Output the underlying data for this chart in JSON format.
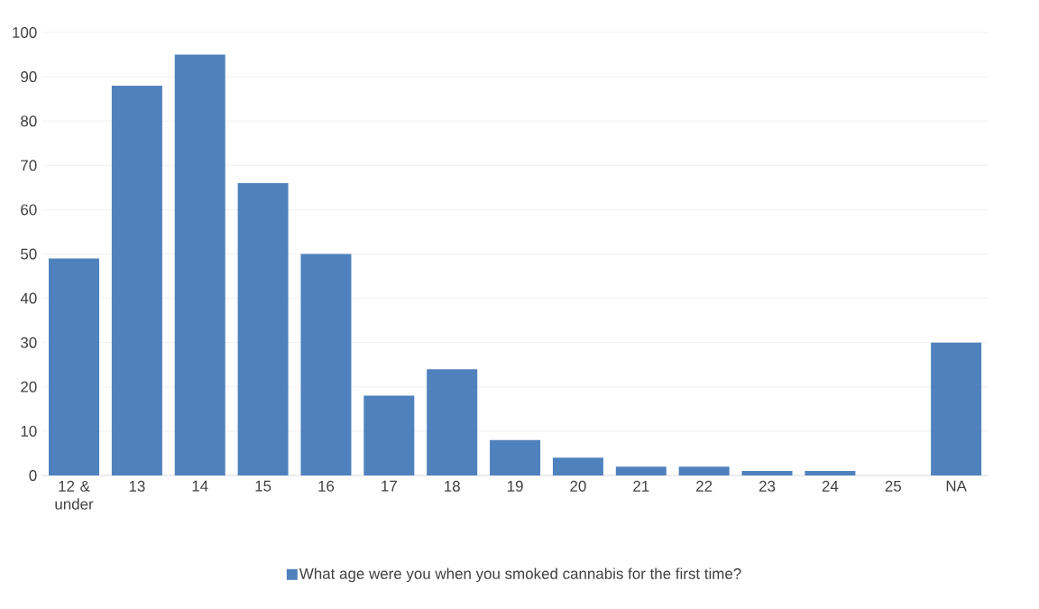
{
  "chart_data": {
    "type": "bar",
    "categories": [
      "12 & under",
      "13",
      "14",
      "15",
      "16",
      "17",
      "18",
      "19",
      "20",
      "21",
      "22",
      "23",
      "24",
      "25",
      "NA"
    ],
    "series": [
      {
        "name": "What age were you when you smoked cannabis for the first time?",
        "color": "#4f81bd",
        "values": [
          49,
          88,
          95,
          66,
          50,
          18,
          24,
          8,
          4,
          2,
          2,
          1,
          1,
          0,
          30
        ]
      }
    ],
    "ylim": [
      0,
      100
    ],
    "yticks": [
      0,
      10,
      20,
      30,
      40,
      50,
      60,
      70,
      80,
      90,
      100
    ],
    "grid": "y",
    "legend": "bottom"
  }
}
